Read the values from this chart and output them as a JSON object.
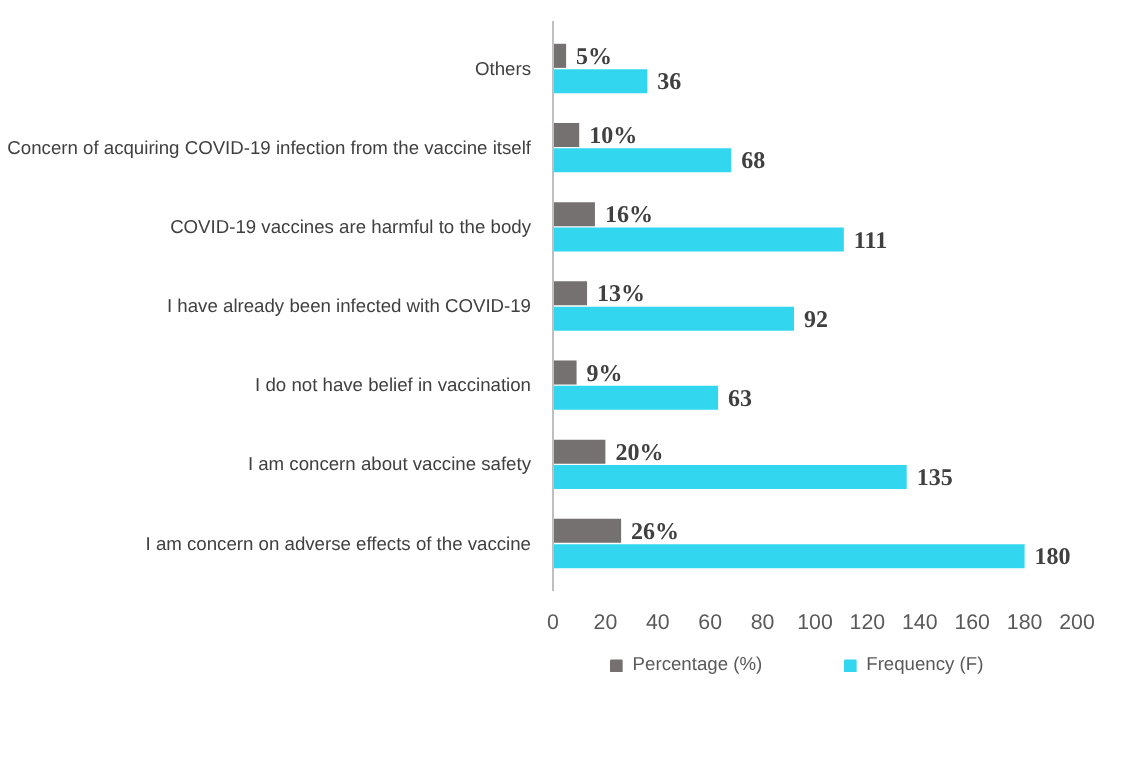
{
  "chart_data": {
    "type": "bar",
    "orientation": "horizontal",
    "categories": [
      "Others",
      "Concern of acquiring COVID-19 infection from the vaccine itself",
      "COVID-19 vaccines are harmful to the body",
      "I have already been infected with COVID-19",
      "I do not have belief in vaccination",
      "I am concern about vaccine safety",
      "I am concern on adverse effects of the vaccine"
    ],
    "series": [
      {
        "name": "Percentage (%)",
        "color": "#767171",
        "values": [
          5,
          10,
          16,
          13,
          9,
          20,
          26
        ],
        "value_labels": [
          "5%",
          "10%",
          "16%",
          "13%",
          "9%",
          "20%",
          "26%"
        ]
      },
      {
        "name": "Frequency (F)",
        "color": "#33d6ef",
        "values": [
          36,
          68,
          111,
          92,
          63,
          135,
          180
        ],
        "value_labels": [
          "36",
          "68",
          "111",
          "92",
          "63",
          "135",
          "180"
        ]
      }
    ],
    "xlim": [
      0,
      200
    ],
    "xticks": [
      0,
      20,
      40,
      60,
      80,
      100,
      120,
      140,
      160,
      180,
      200
    ],
    "grid": false,
    "legend": "bottom"
  }
}
